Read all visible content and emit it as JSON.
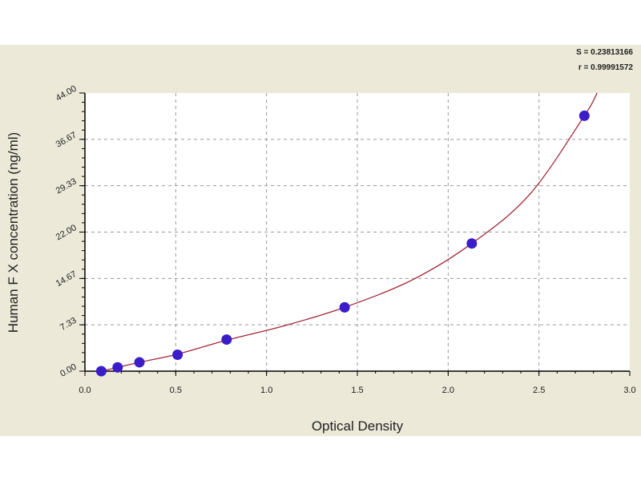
{
  "chart_data": {
    "type": "scatter",
    "title": "",
    "xlabel": "Optical Density",
    "ylabel": "Human F X concentration (ng/ml)",
    "xlim": [
      0,
      3.0
    ],
    "ylim": [
      0,
      44.0
    ],
    "x_ticks": [
      "0.0",
      "0.5",
      "1.0",
      "1.5",
      "2.0",
      "2.5",
      "3.0"
    ],
    "y_ticks": [
      "0.00",
      "7.33",
      "14.67",
      "22.00",
      "29.33",
      "36.67",
      "44.00"
    ],
    "grid": true,
    "annotations": [
      "S = 0.23813166",
      "r = 0.99991572"
    ],
    "points": {
      "x": [
        0.09,
        0.18,
        0.3,
        0.51,
        0.78,
        1.43,
        2.13,
        2.75
      ],
      "y": [
        0.0,
        0.6,
        1.4,
        2.6,
        5.0,
        10.1,
        20.2,
        40.4
      ]
    },
    "fit_curve": {
      "x": [
        0.07,
        0.09,
        0.18,
        0.3,
        0.51,
        0.78,
        1.1,
        1.43,
        1.8,
        2.13,
        2.45,
        2.75,
        2.82
      ],
      "y": [
        -0.1,
        0.0,
        0.6,
        1.4,
        2.7,
        4.9,
        7.2,
        10.1,
        14.4,
        20.2,
        28.0,
        40.4,
        44.0
      ]
    },
    "colors": {
      "background": "#ECE9D8",
      "plot_area": "#FFFFFF",
      "points": "#3A1CC8",
      "curve": "#A0283A",
      "grid": "#9A9A9A"
    }
  }
}
